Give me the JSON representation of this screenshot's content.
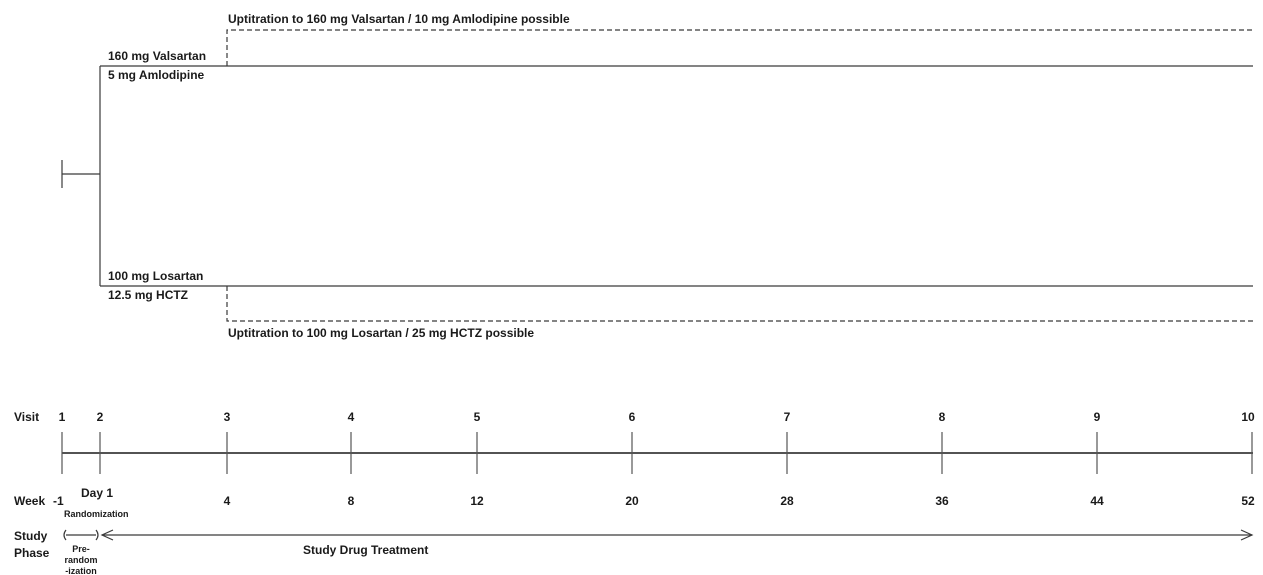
{
  "arms": {
    "upper": {
      "label_line1": "160 mg Valsartan",
      "label_line2": "5 mg Amlodipine",
      "uptitration": "Uptitration to 160 mg Valsartan / 10 mg Amlodipine possible"
    },
    "lower": {
      "label_line1": "100 mg  Losartan",
      "label_line2": "12.5 mg  HCTZ",
      "uptitration": "Uptitration to 100 mg Losartan / 25 mg HCTZ possible"
    }
  },
  "timeline": {
    "visit_label": "Visit",
    "week_label": "Week",
    "visits": [
      "1",
      "2",
      "3",
      "4",
      "5",
      "6",
      "7",
      "8",
      "9",
      "10"
    ],
    "weeks": [
      "-1",
      "Day 1",
      "4",
      "8",
      "12",
      "20",
      "28",
      "36",
      "44",
      "52"
    ],
    "randomization_label": "Randomization"
  },
  "phases": {
    "label_line1": "Study",
    "label_line2": "Phase",
    "pre_randomization": [
      "Pre-",
      "random",
      "-ization"
    ],
    "treatment": "Study Drug Treatment"
  }
}
